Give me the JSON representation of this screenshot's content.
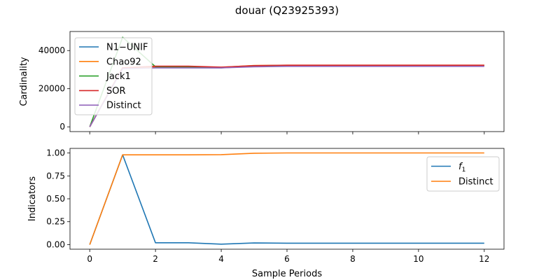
{
  "figure": {
    "suptitle": "douar (Q23925393)"
  },
  "chart_data": [
    {
      "type": "line",
      "title": "",
      "xlabel": "",
      "ylabel": "Cardinality",
      "xlim": [
        -0.6,
        12.6
      ],
      "ylim": [
        -2500,
        50000
      ],
      "xticks": [
        0,
        2,
        4,
        6,
        8,
        10,
        12
      ],
      "yticks": [
        0,
        20000,
        40000
      ],
      "ytick_labels": [
        "0",
        "20000",
        "40000"
      ],
      "x": [
        0,
        1,
        2,
        3,
        4,
        5,
        6,
        7,
        8,
        9,
        10,
        11,
        12
      ],
      "legend": "top-left",
      "series": [
        {
          "name": "N1−UNIF",
          "color": "#1f77b4",
          "values": [
            0,
            31000,
            31000,
            31000,
            30900,
            31800,
            32000,
            32000,
            32000,
            32000,
            32000,
            32000,
            32000
          ]
        },
        {
          "name": "Chao92",
          "color": "#ff7f0e",
          "values": [
            0,
            31000,
            31500,
            31500,
            31200,
            32200,
            32300,
            32300,
            32300,
            32300,
            32300,
            32300,
            32300
          ]
        },
        {
          "name": "Jack1",
          "color": "#2ca02c",
          "values": [
            0,
            47000,
            31500,
            31500,
            31000,
            32000,
            32200,
            32200,
            32200,
            32200,
            32200,
            32200,
            32200
          ]
        },
        {
          "name": "SOR",
          "color": "#d62728",
          "values": [
            0,
            31000,
            31800,
            31800,
            31300,
            32100,
            32300,
            32300,
            32300,
            32300,
            32300,
            32300,
            32300
          ]
        },
        {
          "name": "Distinct",
          "color": "#9467bd",
          "values": [
            0,
            30500,
            30900,
            30900,
            30900,
            31500,
            31700,
            31700,
            31700,
            31700,
            31700,
            31700,
            31700
          ]
        }
      ]
    },
    {
      "type": "line",
      "title": "",
      "xlabel": "Sample Periods",
      "ylabel": "Indicators",
      "xlim": [
        -0.6,
        12.6
      ],
      "ylim": [
        -0.05,
        1.05
      ],
      "xticks": [
        0,
        2,
        4,
        6,
        8,
        10,
        12
      ],
      "xtick_labels": [
        "0",
        "2",
        "4",
        "6",
        "8",
        "10",
        "12"
      ],
      "yticks": [
        0,
        0.25,
        0.5,
        0.75,
        1.0
      ],
      "ytick_labels": [
        "0.00",
        "0.25",
        "0.50",
        "0.75",
        "1.00"
      ],
      "x": [
        0,
        1,
        2,
        3,
        4,
        5,
        6,
        7,
        8,
        9,
        10,
        11,
        12
      ],
      "legend": "top-right",
      "series": [
        {
          "name": "f",
          "name_subscript": "1",
          "color": "#1f77b4",
          "values": [
            0,
            0.98,
            0.02,
            0.02,
            0.005,
            0.018,
            0.016,
            0.016,
            0.016,
            0.016,
            0.016,
            0.016,
            0.016
          ]
        },
        {
          "name": "Distinct",
          "color": "#ff7f0e",
          "values": [
            0,
            0.98,
            0.98,
            0.98,
            0.982,
            0.997,
            1.0,
            1.0,
            1.0,
            1.0,
            1.0,
            1.0,
            1.0
          ]
        }
      ]
    }
  ]
}
